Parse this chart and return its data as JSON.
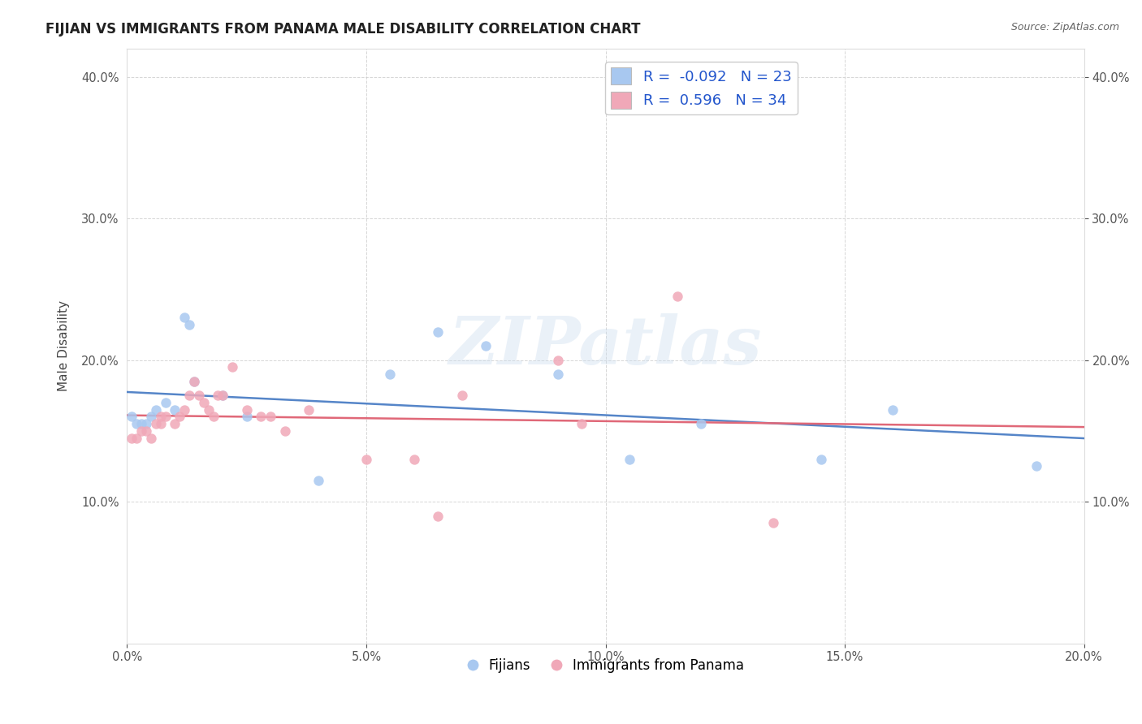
{
  "title": "FIJIAN VS IMMIGRANTS FROM PANAMA MALE DISABILITY CORRELATION CHART",
  "source": "Source: ZipAtlas.com",
  "ylabel": "Male Disability",
  "xlim": [
    0.0,
    0.2
  ],
  "ylim": [
    0.0,
    0.42
  ],
  "yticks": [
    0.1,
    0.2,
    0.3,
    0.4
  ],
  "xticks": [
    0.0,
    0.05,
    0.1,
    0.15,
    0.2
  ],
  "fijian_color": "#a8c8f0",
  "panama_color": "#f0a8b8",
  "fijian_line_color": "#5585c8",
  "panama_line_color": "#e06878",
  "R_fijian": -0.092,
  "N_fijian": 23,
  "R_panama": 0.596,
  "N_panama": 34,
  "fijian_x": [
    0.001,
    0.002,
    0.003,
    0.004,
    0.005,
    0.006,
    0.008,
    0.01,
    0.012,
    0.013,
    0.014,
    0.02,
    0.025,
    0.04,
    0.055,
    0.065,
    0.075,
    0.09,
    0.105,
    0.12,
    0.145,
    0.16,
    0.19
  ],
  "fijian_y": [
    0.16,
    0.155,
    0.155,
    0.155,
    0.16,
    0.165,
    0.17,
    0.165,
    0.23,
    0.225,
    0.185,
    0.175,
    0.16,
    0.115,
    0.19,
    0.22,
    0.21,
    0.19,
    0.13,
    0.155,
    0.13,
    0.165,
    0.125
  ],
  "panama_x": [
    0.001,
    0.002,
    0.003,
    0.004,
    0.005,
    0.006,
    0.007,
    0.007,
    0.008,
    0.01,
    0.011,
    0.012,
    0.013,
    0.014,
    0.015,
    0.016,
    0.017,
    0.018,
    0.019,
    0.02,
    0.022,
    0.025,
    0.028,
    0.03,
    0.033,
    0.038,
    0.05,
    0.06,
    0.065,
    0.07,
    0.09,
    0.095,
    0.115,
    0.135
  ],
  "panama_y": [
    0.145,
    0.145,
    0.15,
    0.15,
    0.145,
    0.155,
    0.155,
    0.16,
    0.16,
    0.155,
    0.16,
    0.165,
    0.175,
    0.185,
    0.175,
    0.17,
    0.165,
    0.16,
    0.175,
    0.175,
    0.195,
    0.165,
    0.16,
    0.16,
    0.15,
    0.165,
    0.13,
    0.13,
    0.09,
    0.175,
    0.2,
    0.155,
    0.245,
    0.085
  ],
  "watermark_text": "ZIPatlas",
  "background_color": "#ffffff",
  "grid_color": "#cccccc"
}
